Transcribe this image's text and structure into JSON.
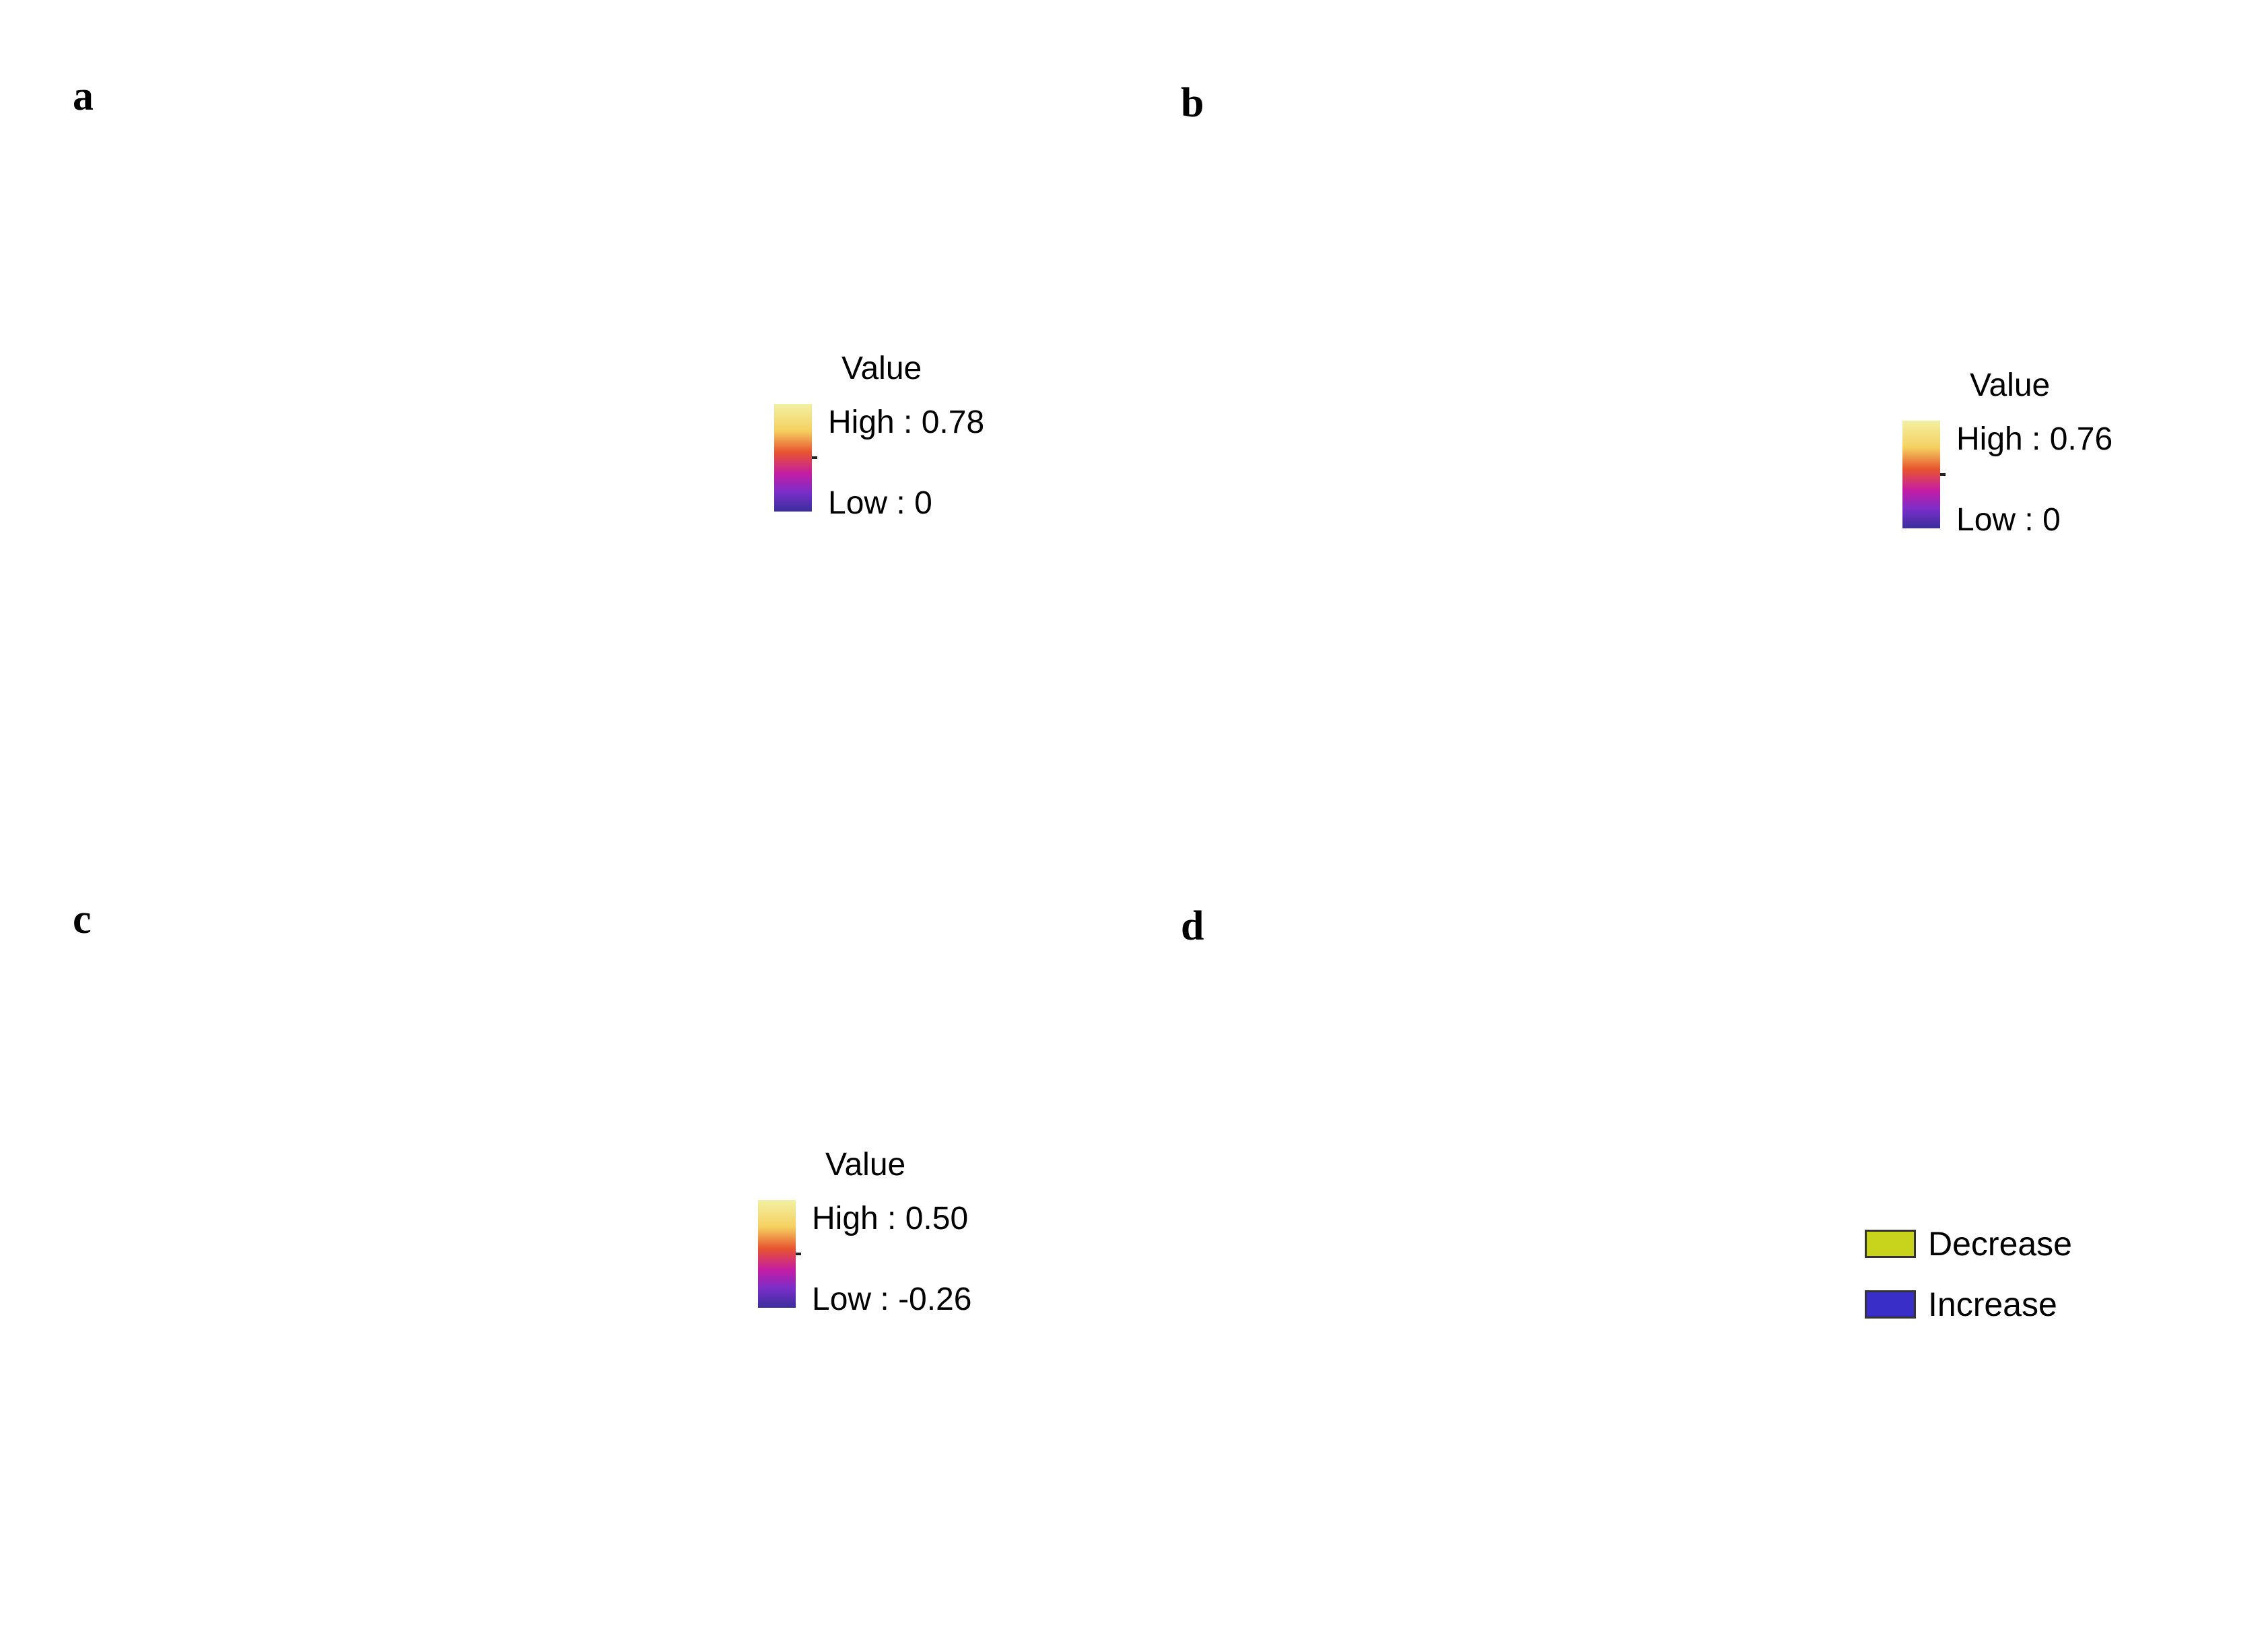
{
  "panels": [
    {
      "letter": "a",
      "legend": {
        "title": "Value",
        "high": "High : 0.78",
        "low": "Low : 0"
      }
    },
    {
      "letter": "b",
      "legend": {
        "title": "Value",
        "high": "High : 0.76",
        "low": "Low : 0"
      }
    },
    {
      "letter": "c",
      "legend": {
        "title": "Value",
        "high": "High : 0.50",
        "low": "Low : -0.26"
      }
    },
    {
      "letter": "d",
      "categories": [
        {
          "label": "Decrease",
          "color": "#c8d41c"
        },
        {
          "label": "Increase",
          "color": "#3a2ec8"
        }
      ]
    }
  ],
  "colors": {
    "low": "#3a2e9c",
    "mid": "#c41ca4",
    "high": "#f2f0a4",
    "increase": "#3a2ec8",
    "decrease": "#c8d41c"
  }
}
